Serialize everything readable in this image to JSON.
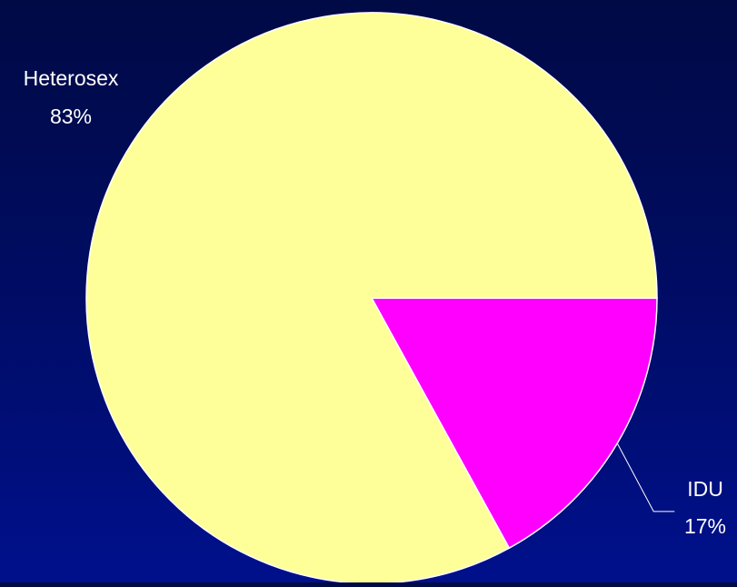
{
  "chart_data": {
    "type": "pie",
    "slices": [
      {
        "label": "IDU",
        "value": 17,
        "value_label": "17%",
        "color": "#ff00ff"
      },
      {
        "label": "Heterosex",
        "value": 83,
        "value_label": "83%",
        "color": "#ffff99"
      }
    ],
    "start_angle_deg": 0,
    "direction": "clockwise",
    "slice_border_color": "#ffffff",
    "background_colors": [
      "#000a45",
      "#00108c"
    ],
    "label_color": "#ffffff",
    "legend": "none"
  }
}
